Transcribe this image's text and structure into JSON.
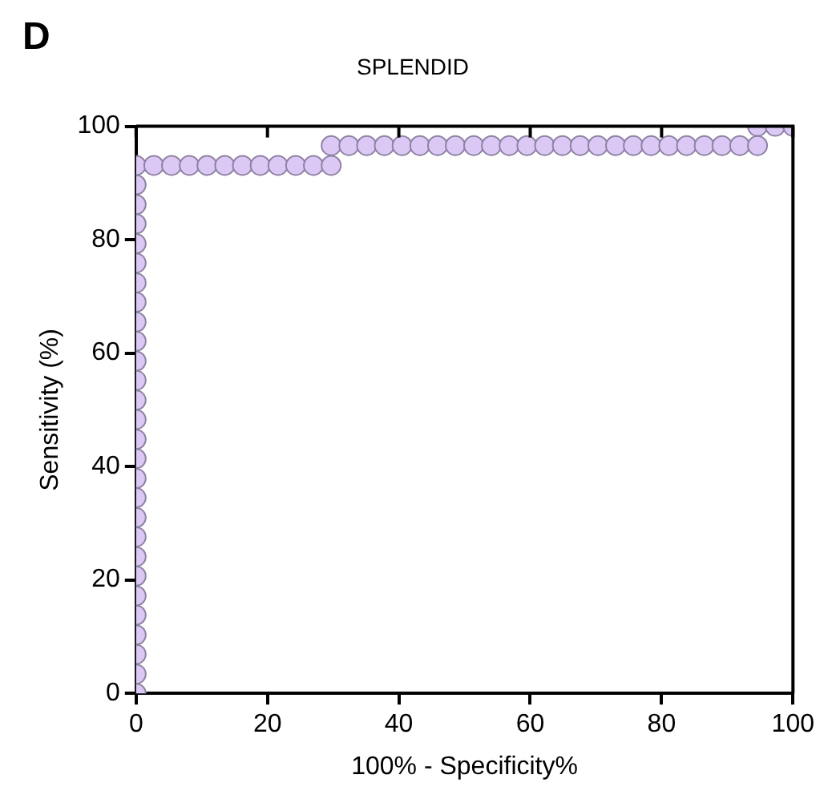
{
  "chart_data": {
    "type": "scatter",
    "title": "SPLENDID",
    "xlabel": "100% - Specificity%",
    "ylabel": "Sensitivity (%)",
    "annotations": [
      "D"
    ],
    "series": [
      {
        "color": "#dcc8f5",
        "x": [
          0,
          0,
          0,
          0,
          0,
          0,
          0,
          0,
          0,
          0,
          0,
          0,
          0,
          0,
          0,
          0,
          0,
          0,
          0,
          0,
          0,
          0,
          0,
          0,
          0,
          0,
          0,
          0,
          2.7,
          5.4,
          8.1,
          10.8,
          13.5,
          16.2,
          18.9,
          21.6,
          24.3,
          27.0,
          29.7,
          29.7,
          32.4,
          35.1,
          37.8,
          40.5,
          43.2,
          45.9,
          48.6,
          51.4,
          54.1,
          56.8,
          59.5,
          62.2,
          64.9,
          67.6,
          70.3,
          73.0,
          75.7,
          78.4,
          81.1,
          83.8,
          86.5,
          89.2,
          91.9,
          94.6,
          94.6,
          97.3,
          100
        ],
        "values": [
          0,
          3.4,
          6.9,
          10.3,
          13.8,
          17.2,
          20.7,
          24.1,
          27.6,
          31.0,
          34.5,
          37.9,
          41.4,
          44.8,
          48.3,
          51.7,
          55.2,
          58.6,
          62.1,
          65.5,
          69.0,
          72.4,
          75.9,
          79.3,
          82.8,
          86.2,
          89.7,
          93.1,
          93.1,
          93.1,
          93.1,
          93.1,
          93.1,
          93.1,
          93.1,
          93.1,
          93.1,
          93.1,
          93.1,
          96.6,
          96.6,
          96.6,
          96.6,
          96.6,
          96.6,
          96.6,
          96.6,
          96.6,
          96.6,
          96.6,
          96.6,
          96.6,
          96.6,
          96.6,
          96.6,
          96.6,
          96.6,
          96.6,
          96.6,
          96.6,
          96.6,
          96.6,
          96.6,
          96.6,
          100,
          100,
          100
        ]
      }
    ],
    "xlim": [
      0,
      100
    ],
    "xticks": [
      0,
      20,
      40,
      60,
      80,
      100
    ],
    "ylim": [
      0,
      100
    ],
    "yticks": [
      0,
      20,
      40,
      60,
      80,
      100
    ],
    "marker": "circle",
    "grid": false,
    "legend": false
  }
}
